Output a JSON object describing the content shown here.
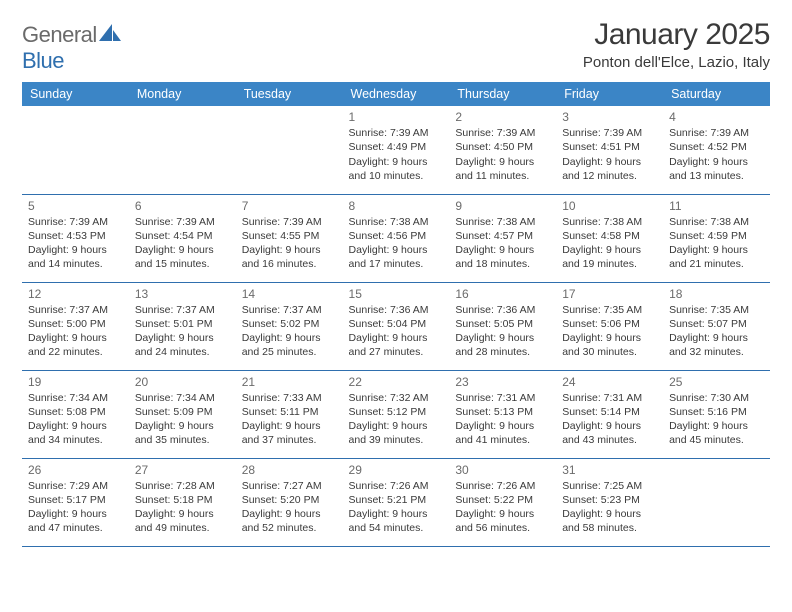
{
  "brand": {
    "part1": "General",
    "part2": "Blue"
  },
  "title": "January 2025",
  "location": "Ponton dell'Elce, Lazio, Italy",
  "colors": {
    "header_bg": "#3b85c6",
    "rule": "#2f6fae",
    "text": "#3a3a3a",
    "muted": "#6b6b6b",
    "white": "#ffffff"
  },
  "weekdays": [
    "Sunday",
    "Monday",
    "Tuesday",
    "Wednesday",
    "Thursday",
    "Friday",
    "Saturday"
  ],
  "weeks": [
    [
      {
        "day": "",
        "lines": []
      },
      {
        "day": "",
        "lines": []
      },
      {
        "day": "",
        "lines": []
      },
      {
        "day": "1",
        "lines": [
          "Sunrise: 7:39 AM",
          "Sunset: 4:49 PM",
          "Daylight: 9 hours",
          "and 10 minutes."
        ]
      },
      {
        "day": "2",
        "lines": [
          "Sunrise: 7:39 AM",
          "Sunset: 4:50 PM",
          "Daylight: 9 hours",
          "and 11 minutes."
        ]
      },
      {
        "day": "3",
        "lines": [
          "Sunrise: 7:39 AM",
          "Sunset: 4:51 PM",
          "Daylight: 9 hours",
          "and 12 minutes."
        ]
      },
      {
        "day": "4",
        "lines": [
          "Sunrise: 7:39 AM",
          "Sunset: 4:52 PM",
          "Daylight: 9 hours",
          "and 13 minutes."
        ]
      }
    ],
    [
      {
        "day": "5",
        "lines": [
          "Sunrise: 7:39 AM",
          "Sunset: 4:53 PM",
          "Daylight: 9 hours",
          "and 14 minutes."
        ]
      },
      {
        "day": "6",
        "lines": [
          "Sunrise: 7:39 AM",
          "Sunset: 4:54 PM",
          "Daylight: 9 hours",
          "and 15 minutes."
        ]
      },
      {
        "day": "7",
        "lines": [
          "Sunrise: 7:39 AM",
          "Sunset: 4:55 PM",
          "Daylight: 9 hours",
          "and 16 minutes."
        ]
      },
      {
        "day": "8",
        "lines": [
          "Sunrise: 7:38 AM",
          "Sunset: 4:56 PM",
          "Daylight: 9 hours",
          "and 17 minutes."
        ]
      },
      {
        "day": "9",
        "lines": [
          "Sunrise: 7:38 AM",
          "Sunset: 4:57 PM",
          "Daylight: 9 hours",
          "and 18 minutes."
        ]
      },
      {
        "day": "10",
        "lines": [
          "Sunrise: 7:38 AM",
          "Sunset: 4:58 PM",
          "Daylight: 9 hours",
          "and 19 minutes."
        ]
      },
      {
        "day": "11",
        "lines": [
          "Sunrise: 7:38 AM",
          "Sunset: 4:59 PM",
          "Daylight: 9 hours",
          "and 21 minutes."
        ]
      }
    ],
    [
      {
        "day": "12",
        "lines": [
          "Sunrise: 7:37 AM",
          "Sunset: 5:00 PM",
          "Daylight: 9 hours",
          "and 22 minutes."
        ]
      },
      {
        "day": "13",
        "lines": [
          "Sunrise: 7:37 AM",
          "Sunset: 5:01 PM",
          "Daylight: 9 hours",
          "and 24 minutes."
        ]
      },
      {
        "day": "14",
        "lines": [
          "Sunrise: 7:37 AM",
          "Sunset: 5:02 PM",
          "Daylight: 9 hours",
          "and 25 minutes."
        ]
      },
      {
        "day": "15",
        "lines": [
          "Sunrise: 7:36 AM",
          "Sunset: 5:04 PM",
          "Daylight: 9 hours",
          "and 27 minutes."
        ]
      },
      {
        "day": "16",
        "lines": [
          "Sunrise: 7:36 AM",
          "Sunset: 5:05 PM",
          "Daylight: 9 hours",
          "and 28 minutes."
        ]
      },
      {
        "day": "17",
        "lines": [
          "Sunrise: 7:35 AM",
          "Sunset: 5:06 PM",
          "Daylight: 9 hours",
          "and 30 minutes."
        ]
      },
      {
        "day": "18",
        "lines": [
          "Sunrise: 7:35 AM",
          "Sunset: 5:07 PM",
          "Daylight: 9 hours",
          "and 32 minutes."
        ]
      }
    ],
    [
      {
        "day": "19",
        "lines": [
          "Sunrise: 7:34 AM",
          "Sunset: 5:08 PM",
          "Daylight: 9 hours",
          "and 34 minutes."
        ]
      },
      {
        "day": "20",
        "lines": [
          "Sunrise: 7:34 AM",
          "Sunset: 5:09 PM",
          "Daylight: 9 hours",
          "and 35 minutes."
        ]
      },
      {
        "day": "21",
        "lines": [
          "Sunrise: 7:33 AM",
          "Sunset: 5:11 PM",
          "Daylight: 9 hours",
          "and 37 minutes."
        ]
      },
      {
        "day": "22",
        "lines": [
          "Sunrise: 7:32 AM",
          "Sunset: 5:12 PM",
          "Daylight: 9 hours",
          "and 39 minutes."
        ]
      },
      {
        "day": "23",
        "lines": [
          "Sunrise: 7:31 AM",
          "Sunset: 5:13 PM",
          "Daylight: 9 hours",
          "and 41 minutes."
        ]
      },
      {
        "day": "24",
        "lines": [
          "Sunrise: 7:31 AM",
          "Sunset: 5:14 PM",
          "Daylight: 9 hours",
          "and 43 minutes."
        ]
      },
      {
        "day": "25",
        "lines": [
          "Sunrise: 7:30 AM",
          "Sunset: 5:16 PM",
          "Daylight: 9 hours",
          "and 45 minutes."
        ]
      }
    ],
    [
      {
        "day": "26",
        "lines": [
          "Sunrise: 7:29 AM",
          "Sunset: 5:17 PM",
          "Daylight: 9 hours",
          "and 47 minutes."
        ]
      },
      {
        "day": "27",
        "lines": [
          "Sunrise: 7:28 AM",
          "Sunset: 5:18 PM",
          "Daylight: 9 hours",
          "and 49 minutes."
        ]
      },
      {
        "day": "28",
        "lines": [
          "Sunrise: 7:27 AM",
          "Sunset: 5:20 PM",
          "Daylight: 9 hours",
          "and 52 minutes."
        ]
      },
      {
        "day": "29",
        "lines": [
          "Sunrise: 7:26 AM",
          "Sunset: 5:21 PM",
          "Daylight: 9 hours",
          "and 54 minutes."
        ]
      },
      {
        "day": "30",
        "lines": [
          "Sunrise: 7:26 AM",
          "Sunset: 5:22 PM",
          "Daylight: 9 hours",
          "and 56 minutes."
        ]
      },
      {
        "day": "31",
        "lines": [
          "Sunrise: 7:25 AM",
          "Sunset: 5:23 PM",
          "Daylight: 9 hours",
          "and 58 minutes."
        ]
      },
      {
        "day": "",
        "lines": []
      }
    ]
  ]
}
